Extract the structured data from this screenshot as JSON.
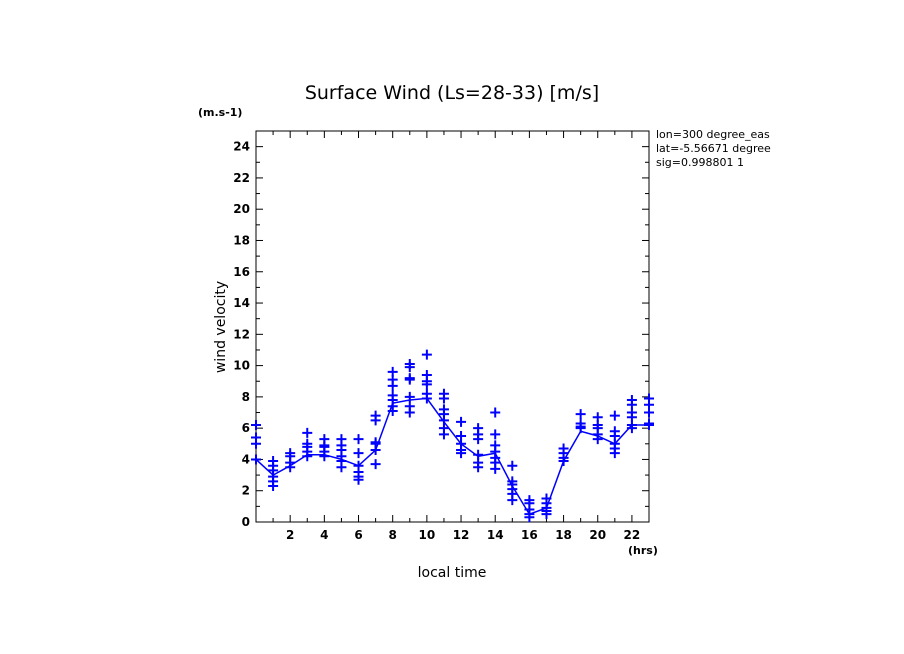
{
  "chart_data": {
    "type": "line",
    "title": "Surface Wind  (Ls=28-33) [m/s]",
    "xlabel": "local time",
    "ylabel": "wind velocity",
    "y_unit": "(m.s-1)",
    "x_unit": "(hrs)",
    "xlim": [
      0,
      23
    ],
    "ylim": [
      0,
      25
    ],
    "x_ticks": [
      2,
      4,
      6,
      8,
      10,
      12,
      14,
      16,
      18,
      20,
      22
    ],
    "y_ticks": [
      0,
      2,
      4,
      6,
      8,
      10,
      12,
      14,
      16,
      18,
      20,
      22,
      24
    ],
    "grid": false,
    "line_color": "#0000ff",
    "series": [
      {
        "style": "line",
        "x": [
          0,
          1,
          2,
          3,
          4,
          5,
          6,
          7,
          8,
          9,
          10,
          11,
          12,
          13,
          14,
          15,
          16,
          17,
          18,
          19,
          20,
          21,
          22,
          23
        ],
        "values": [
          4.0,
          3.0,
          3.6,
          4.3,
          4.3,
          4.0,
          3.6,
          4.6,
          7.6,
          7.8,
          7.9,
          6.4,
          5.0,
          4.2,
          4.4,
          2.3,
          0.5,
          0.9,
          3.9,
          5.8,
          5.5,
          5.0,
          6.2,
          6.2
        ]
      },
      {
        "style": "markers",
        "marker": "+",
        "points": [
          [
            0,
            6.2
          ],
          [
            0,
            5.4
          ],
          [
            0,
            5.0
          ],
          [
            0,
            4.0
          ],
          [
            1,
            3.9
          ],
          [
            1,
            3.6
          ],
          [
            1,
            3.3
          ],
          [
            1,
            2.9
          ],
          [
            1,
            2.6
          ],
          [
            1,
            2.3
          ],
          [
            2,
            4.4
          ],
          [
            2,
            4.2
          ],
          [
            2,
            3.8
          ],
          [
            2,
            3.5
          ],
          [
            3,
            5.7
          ],
          [
            3,
            5.0
          ],
          [
            3,
            4.8
          ],
          [
            3,
            4.5
          ],
          [
            3,
            4.2
          ],
          [
            4,
            5.3
          ],
          [
            4,
            4.9
          ],
          [
            4,
            4.8
          ],
          [
            4,
            4.5
          ],
          [
            4,
            4.2
          ],
          [
            5,
            5.3
          ],
          [
            5,
            4.9
          ],
          [
            5,
            4.6
          ],
          [
            5,
            4.2
          ],
          [
            5,
            3.9
          ],
          [
            5,
            3.5
          ],
          [
            6,
            5.3
          ],
          [
            6,
            4.4
          ],
          [
            6,
            3.6
          ],
          [
            6,
            3.2
          ],
          [
            6,
            2.9
          ],
          [
            6,
            2.7
          ],
          [
            7,
            6.8
          ],
          [
            7,
            6.5
          ],
          [
            7,
            5.1
          ],
          [
            7,
            5.0
          ],
          [
            7,
            4.6
          ],
          [
            7,
            3.7
          ],
          [
            8,
            9.6
          ],
          [
            8,
            9.1
          ],
          [
            8,
            8.7
          ],
          [
            8,
            8.1
          ],
          [
            8,
            7.8
          ],
          [
            8,
            7.4
          ],
          [
            8,
            7.1
          ],
          [
            9,
            10.1
          ],
          [
            9,
            9.9
          ],
          [
            9,
            9.2
          ],
          [
            9,
            9.1
          ],
          [
            9,
            8.0
          ],
          [
            9,
            7.4
          ],
          [
            9,
            7.0
          ],
          [
            10,
            10.7
          ],
          [
            10,
            9.4
          ],
          [
            10,
            9.0
          ],
          [
            10,
            8.8
          ],
          [
            10,
            8.2
          ],
          [
            10,
            7.9
          ],
          [
            11,
            8.2
          ],
          [
            11,
            7.9
          ],
          [
            11,
            7.2
          ],
          [
            11,
            6.9
          ],
          [
            11,
            6.5
          ],
          [
            11,
            6.0
          ],
          [
            11,
            5.6
          ],
          [
            12,
            6.4
          ],
          [
            12,
            5.5
          ],
          [
            12,
            5.0
          ],
          [
            12,
            4.6
          ],
          [
            12,
            4.4
          ],
          [
            13,
            6.0
          ],
          [
            13,
            5.6
          ],
          [
            13,
            5.3
          ],
          [
            13,
            4.3
          ],
          [
            13,
            3.8
          ],
          [
            13,
            3.5
          ],
          [
            14,
            7.0
          ],
          [
            14,
            5.6
          ],
          [
            14,
            4.9
          ],
          [
            14,
            4.5
          ],
          [
            14,
            4.1
          ],
          [
            14,
            3.8
          ],
          [
            14,
            3.4
          ],
          [
            15,
            3.6
          ],
          [
            15,
            2.6
          ],
          [
            15,
            2.4
          ],
          [
            15,
            2.1
          ],
          [
            15,
            1.8
          ],
          [
            15,
            1.4
          ],
          [
            16,
            1.4
          ],
          [
            16,
            1.2
          ],
          [
            16,
            0.8
          ],
          [
            16,
            0.5
          ],
          [
            16,
            0.3
          ],
          [
            17,
            1.5
          ],
          [
            17,
            1.2
          ],
          [
            17,
            0.9
          ],
          [
            17,
            0.7
          ],
          [
            17,
            0.5
          ],
          [
            18,
            4.7
          ],
          [
            18,
            4.4
          ],
          [
            18,
            4.1
          ],
          [
            18,
            3.9
          ],
          [
            19,
            6.9
          ],
          [
            19,
            6.3
          ],
          [
            19,
            6.1
          ],
          [
            19,
            6.0
          ],
          [
            20,
            6.7
          ],
          [
            20,
            6.2
          ],
          [
            20,
            6.0
          ],
          [
            20,
            5.6
          ],
          [
            20,
            5.3
          ],
          [
            21,
            6.8
          ],
          [
            21,
            5.8
          ],
          [
            21,
            5.5
          ],
          [
            21,
            5.0
          ],
          [
            21,
            4.7
          ],
          [
            21,
            4.4
          ],
          [
            22,
            7.8
          ],
          [
            22,
            7.5
          ],
          [
            22,
            7.0
          ],
          [
            22,
            6.7
          ],
          [
            22,
            6.2
          ],
          [
            22,
            6.0
          ],
          [
            23,
            7.9
          ],
          [
            23,
            7.5
          ],
          [
            23,
            7.0
          ],
          [
            23,
            6.3
          ],
          [
            23,
            6.2
          ]
        ]
      }
    ],
    "annotations": [
      "lon=300 degree_eas",
      "lat=-5.56671 degree",
      "sig=0.998801 1"
    ]
  }
}
